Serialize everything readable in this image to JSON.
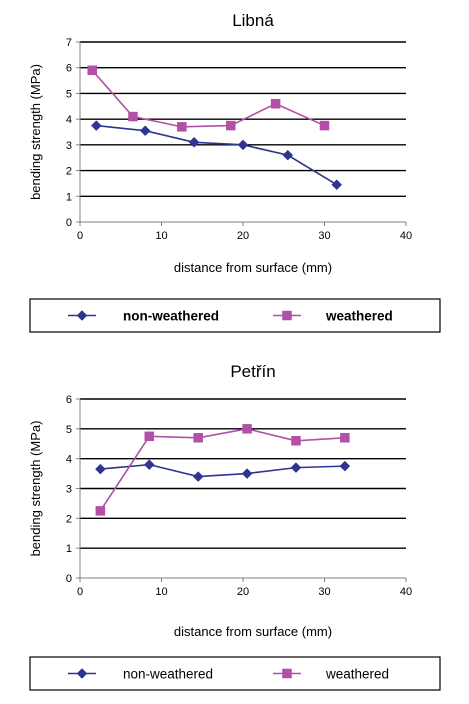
{
  "chart_data": [
    {
      "type": "line",
      "title": "Libná",
      "xlabel": "distance from surface (mm)",
      "ylabel": "bending strength (MPa)",
      "xlim": [
        0,
        40
      ],
      "ylim": [
        0,
        7
      ],
      "xticks": [
        0,
        10,
        20,
        30,
        40
      ],
      "yticks": [
        0,
        1,
        2,
        3,
        4,
        5,
        6,
        7
      ],
      "grid": "horizontal",
      "legend_position": "bottom",
      "legend_bold": true,
      "series": [
        {
          "name": "non-weathered",
          "color": "#2e3590",
          "marker": "diamond",
          "x": [
            2,
            8,
            14,
            20,
            25.5,
            31.5
          ],
          "y": [
            3.75,
            3.55,
            3.1,
            3.0,
            2.6,
            1.45
          ]
        },
        {
          "name": "weathered",
          "color": "#b24fa6",
          "marker": "square",
          "x": [
            1.5,
            6.5,
            12.5,
            18.5,
            24,
            30
          ],
          "y": [
            5.9,
            4.1,
            3.7,
            3.75,
            4.6,
            3.75
          ]
        }
      ]
    },
    {
      "type": "line",
      "title": "Petřín",
      "xlabel": "distance from surface (mm)",
      "ylabel": "bending strength (MPa)",
      "xlim": [
        0,
        40
      ],
      "ylim": [
        0,
        6
      ],
      "xticks": [
        0,
        10,
        20,
        30,
        40
      ],
      "yticks": [
        0,
        1,
        2,
        3,
        4,
        5,
        6
      ],
      "grid": "horizontal",
      "legend_position": "bottom",
      "legend_bold": false,
      "series": [
        {
          "name": "non-weathered",
          "color": "#2e3590",
          "marker": "diamond",
          "x": [
            2.5,
            8.5,
            14.5,
            20.5,
            26.5,
            32.5
          ],
          "y": [
            3.65,
            3.8,
            3.4,
            3.5,
            3.7,
            3.75
          ]
        },
        {
          "name": "weathered",
          "color": "#b24fa6",
          "marker": "square",
          "x": [
            2.5,
            8.5,
            14.5,
            20.5,
            26.5,
            32.5
          ],
          "y": [
            2.25,
            4.75,
            4.7,
            5.0,
            4.6,
            4.7
          ]
        }
      ]
    }
  ]
}
